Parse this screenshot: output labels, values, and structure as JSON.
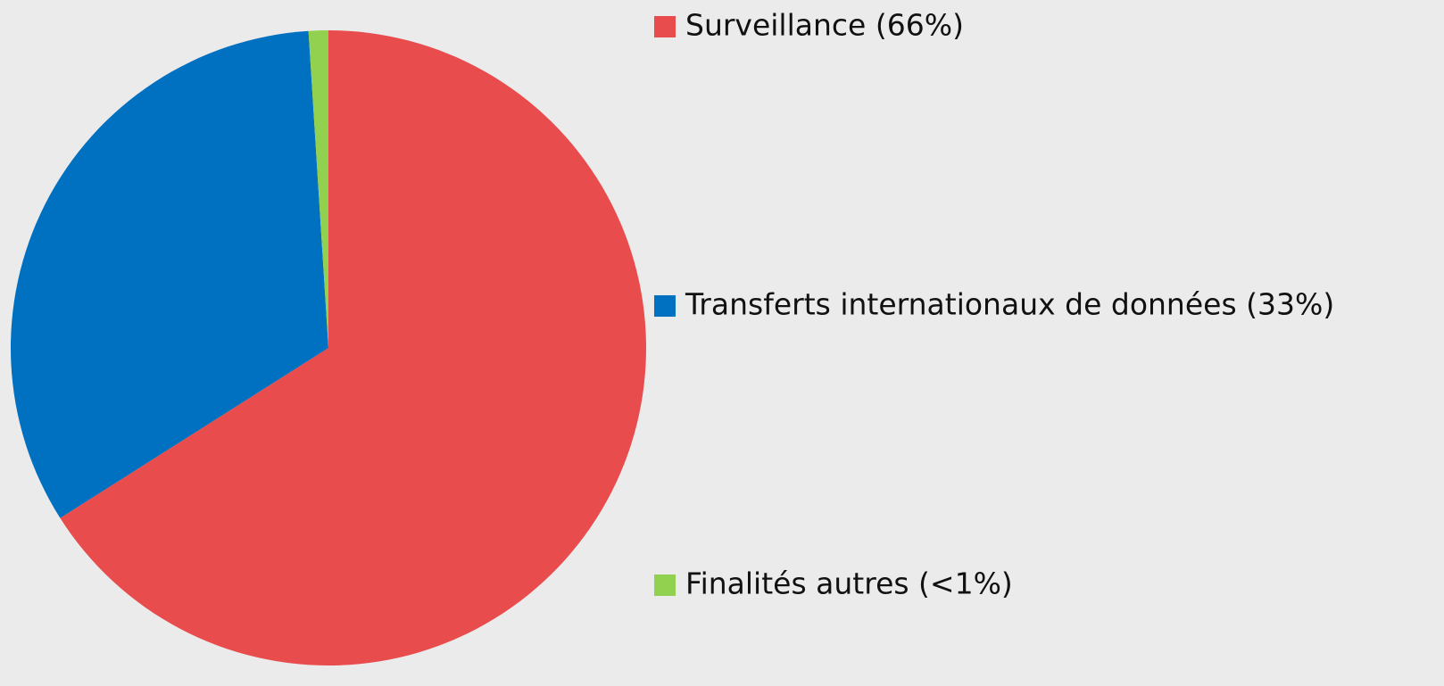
{
  "chart_data": {
    "type": "pie",
    "categories": [
      "Surveillance (66%)",
      "Transferts internationaux de données (33%)",
      "Finalités autres (<1%)"
    ],
    "values": [
      66,
      33,
      1
    ],
    "colors": [
      "#e84c4c",
      "#0070c0",
      "#92d050"
    ]
  }
}
